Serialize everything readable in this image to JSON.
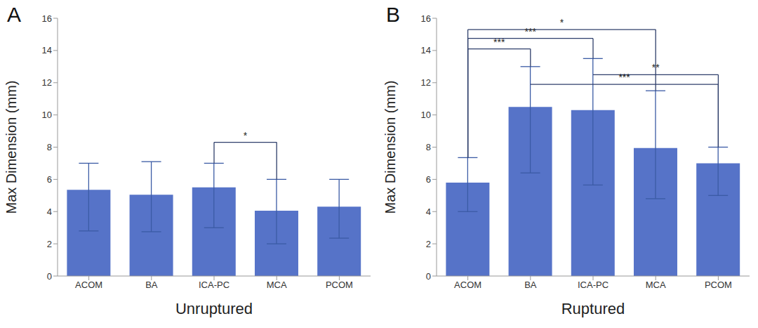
{
  "chart_data": [
    {
      "type": "bar",
      "panel": "A",
      "x_label": "Unruptured",
      "y_label": "Max Dimension (mm)",
      "categories": [
        "ACOM",
        "BA",
        "ICA-PC",
        "MCA",
        "PCOM"
      ],
      "values": [
        5.35,
        5.05,
        5.5,
        4.05,
        4.3
      ],
      "errors": [
        [
          2.55,
          1.65
        ],
        [
          2.3,
          2.05
        ],
        [
          2.5,
          1.5
        ],
        [
          2.05,
          1.95
        ],
        [
          1.95,
          1.7
        ]
      ],
      "color": "#5673c8",
      "ylim": [
        0,
        16
      ],
      "yticks": [
        0,
        2,
        4,
        6,
        8,
        10,
        12,
        14,
        16
      ],
      "grid": false,
      "brackets": [
        {
          "from": "ICA-PC",
          "to": "MCA",
          "y": 8.3,
          "label": "*",
          "left_end": 7.0,
          "right_end": 6.0
        }
      ]
    },
    {
      "type": "bar",
      "panel": "B",
      "x_label": "Ruptured",
      "y_label": "Max Dimension (mm)",
      "categories": [
        "ACOM",
        "BA",
        "ICA-PC",
        "MCA",
        "PCOM"
      ],
      "values": [
        5.8,
        10.5,
        10.3,
        7.95,
        7.0
      ],
      "errors": [
        [
          1.8,
          1.55
        ],
        [
          4.1,
          2.5
        ],
        [
          4.65,
          3.2
        ],
        [
          3.15,
          3.55
        ],
        [
          2.0,
          1.0
        ]
      ],
      "color": "#5673c8",
      "ylim": [
        0,
        16
      ],
      "yticks": [
        0,
        2,
        4,
        6,
        8,
        10,
        12,
        14,
        16
      ],
      "grid": false,
      "brackets": [
        {
          "from": "ACOM",
          "to": "BA",
          "y": 14.1,
          "label": "***",
          "left_end": 7.35,
          "right_end": 13.0
        },
        {
          "from": "ACOM",
          "to": "ICA-PC",
          "y": 14.75,
          "label": "***",
          "left_end": 7.35,
          "right_end": 13.5
        },
        {
          "from": "ACOM",
          "to": "MCA",
          "y": 15.3,
          "label": "*",
          "left_end": 7.35,
          "right_end": 11.5
        },
        {
          "from": "ICA-PC",
          "to": "PCOM",
          "y": 12.5,
          "label": "**",
          "left_end": null,
          "right_end": 8.0
        },
        {
          "from": "BA",
          "to": "PCOM",
          "y": 11.9,
          "label": "***",
          "left_end": null,
          "right_end": 8.0
        }
      ]
    }
  ]
}
